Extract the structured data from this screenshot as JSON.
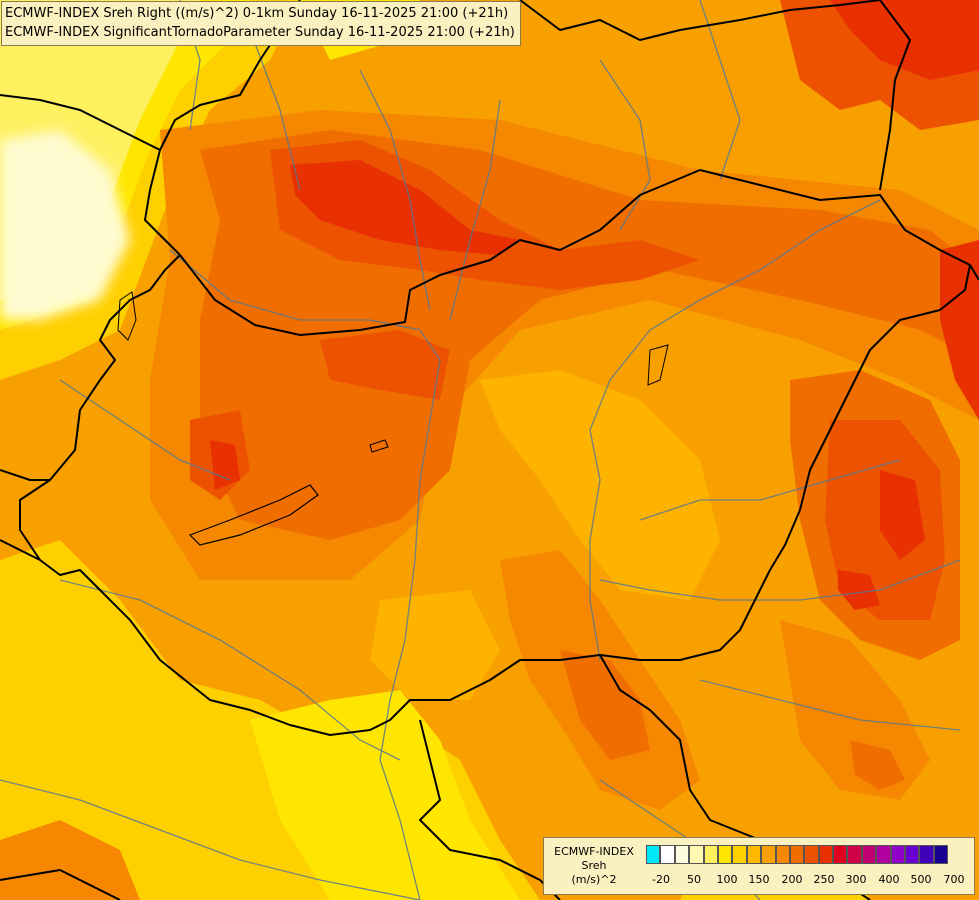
{
  "header": {
    "line1": "ECMWF-INDEX Sreh Right ((m/s)^2) 0-1km Sunday 16-11-2025 21:00 (+21h)",
    "line2": "ECMWF-INDEX SignificantTornadoParameter Sunday 16-11-2025 21:00 (+21h)"
  },
  "legend": {
    "title": "ECMWF-INDEX",
    "variable": "Sreh",
    "unit": "(m/s)^2",
    "colors": [
      "#00e8f8",
      "#ffffff",
      "#fffde0",
      "#fff8b0",
      "#fff060",
      "#ffe600",
      "#ffd000",
      "#ffb800",
      "#f8a000",
      "#f58800",
      "#f06e00",
      "#ec5200",
      "#e83000",
      "#e00020",
      "#d00048",
      "#c00070",
      "#b000a0",
      "#9000c8",
      "#6800d0",
      "#4000b8",
      "#1a0090"
    ],
    "ticks": [
      "-20",
      "50",
      "100",
      "150",
      "200",
      "250",
      "300",
      "400",
      "500",
      "700"
    ]
  },
  "map_colors": {
    "base": "#f8a000",
    "light_orange": "#ffb800",
    "yellow_orange": "#ffd000",
    "yellow": "#ffe600",
    "light_yellow": "#fff060",
    "pale_yellow": "#fffbd0",
    "dark_orange": "#f58800",
    "orange_red": "#f06e00",
    "red_orange": "#ec5200",
    "red": "#e83000",
    "country_border": "#000000",
    "river": "#5a7890"
  }
}
